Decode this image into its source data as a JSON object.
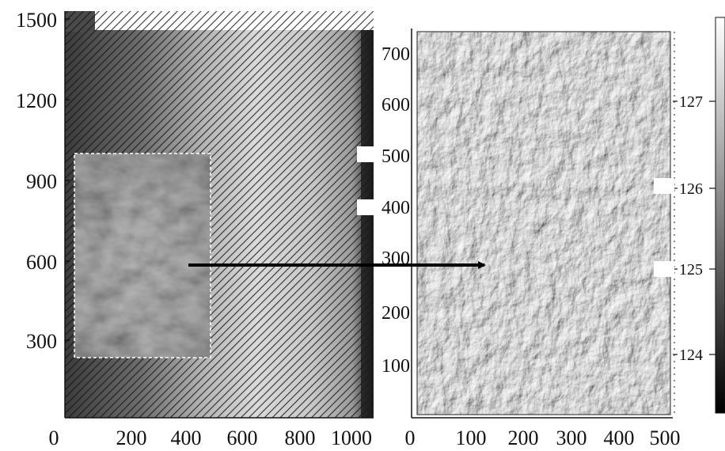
{
  "left_panel": {
    "x_ticks": [
      "0",
      "200",
      "400",
      "600",
      "800",
      "1000"
    ],
    "y_ticks": [
      "300",
      "600",
      "900",
      "1200",
      "1500"
    ]
  },
  "right_panel": {
    "x_ticks": [
      "0",
      "100",
      "200",
      "300",
      "400",
      "500"
    ],
    "y_ticks": [
      "100",
      "200",
      "300",
      "400",
      "500",
      "600",
      "700"
    ]
  },
  "colorbar": {
    "ticks": [
      "124",
      "125",
      "126",
      "127"
    ],
    "palette": [
      "#000000",
      "#ffffff"
    ]
  },
  "colors": {
    "axis": "#111111",
    "selection_box": "#ffffff",
    "arrow": "#000000"
  }
}
